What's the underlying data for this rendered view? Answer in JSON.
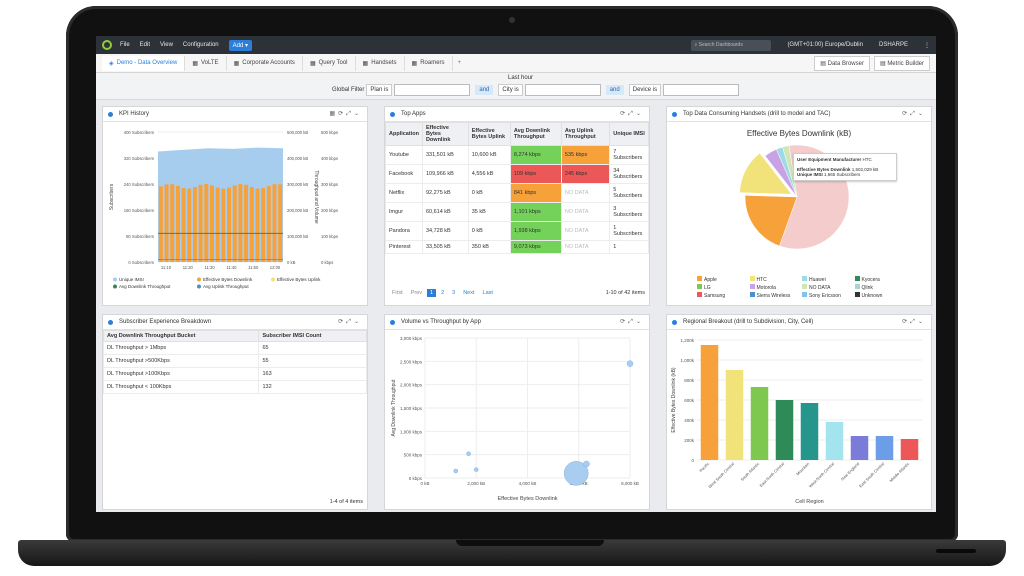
{
  "menubar": {
    "items": [
      "File",
      "Edit",
      "View",
      "Configuration"
    ],
    "add": "Add",
    "search_placeholder": "Search Dashboards",
    "timezone": "(GMT+01:00) Europe/Dublin",
    "user": "DSHARPE"
  },
  "tabs": [
    {
      "label": "Demo - Data Overview",
      "active": true
    },
    {
      "label": "VoLTE"
    },
    {
      "label": "Corporate Accounts"
    },
    {
      "label": "Query Tool"
    },
    {
      "label": "Handsets"
    },
    {
      "label": "Roamers"
    }
  ],
  "tab_add": "+",
  "toolbar": {
    "data_browser": "Data Browser",
    "metric_builder": "Metric Builder"
  },
  "filter": {
    "time": "Last hour",
    "global_label": "Global Filter",
    "plan": "Plan is",
    "and1": "and",
    "city": "City is",
    "and2": "and",
    "device": "Device is"
  },
  "kpi": {
    "title": "KPI History",
    "left_axis": "Subscribers",
    "right_axis": "Throughput and Volume",
    "y_left": [
      "400 Subscribers",
      "320 Subscribers",
      "240 Subscribers",
      "160 Subscribers",
      "80 Subscribers",
      "0 Subscribers"
    ],
    "y_right": [
      "500,000 kB",
      "400,000 kB",
      "300,000 kB",
      "200,000 kB",
      "100,000 kB",
      "0 kB"
    ],
    "y_right2": [
      "500 kbps",
      "400 kbps",
      "300 kbps",
      "200 kbps",
      "100 kbps",
      "0 kbps"
    ],
    "x": [
      "11:10",
      "11:20",
      "11:30",
      "11:40",
      "11:50",
      "12:00"
    ],
    "legend": [
      "Unique IMSI",
      "Effective Bytes Downlink",
      "Effective Bytes Uplink",
      "Avg Downlink Throughput",
      "Avg Uplink Throughput"
    ]
  },
  "sub_exp": {
    "title": "Subscriber Experience Breakdown",
    "headers": [
      "Avg Downlink Throughput Bucket",
      "Subscriber IMSI Count"
    ],
    "rows": [
      [
        "DL Throughput > 1Mbps",
        "65"
      ],
      [
        "DL Throughput >500Kbps",
        "55"
      ],
      [
        "DL Throughput >100Kbps",
        "163"
      ],
      [
        "DL Throughput < 100Kbps",
        "132"
      ]
    ],
    "footer": "1-4 of 4 items"
  },
  "apps": {
    "title": "Top Apps",
    "headers": [
      "Application",
      "Effective Bytes Downlink",
      "Effective Bytes Uplink",
      "Avg Downlink Throughput",
      "Avg Uplink Throughput",
      "Unique IMSI"
    ],
    "rows": [
      [
        "Youtube",
        "331,501 kB",
        "10,600 kB",
        "8,274 kbps",
        "535 kbps",
        "7 Subscribers"
      ],
      [
        "Facebook",
        "109,966 kB",
        "4,556 kB",
        "109 kbps",
        "245 kbps",
        "34 Subscribers"
      ],
      [
        "Netflix",
        "92,275 kB",
        "0 kB",
        "841 kbps",
        "NO DATA",
        "5 Subscribers"
      ],
      [
        "Imgur",
        "60,614 kB",
        "35 kB",
        "1,101 kbps",
        "NO DATA",
        "3 Subscribers"
      ],
      [
        "Pandora",
        "34,728 kB",
        "0 kB",
        "1,938 kbps",
        "NO DATA",
        "1 Subscribers"
      ],
      [
        "Pinterest",
        "33,505 kB",
        "350 kB",
        "9,073 kbps",
        "NO DATA",
        "1"
      ]
    ],
    "cell_colors": [
      [
        "g",
        "o"
      ],
      [
        "r",
        "r"
      ],
      [
        "o",
        ""
      ],
      [
        "g",
        ""
      ],
      [
        "g",
        ""
      ],
      [
        "g",
        ""
      ]
    ],
    "pager": {
      "first": "First",
      "prev": "Prev",
      "pages": [
        "1",
        "2",
        "3"
      ],
      "next": "Next",
      "last": "Last",
      "summary": "1-10 of 42 items"
    }
  },
  "handsets": {
    "title": "Top Data Consuming Handsets (drill to model and TAC)",
    "chart_title": "Effective Bytes Downlink (kB)",
    "tooltip": {
      "l1": "User Equipment Manufacturer",
      "v1": "HTC",
      "l2": "Effective Bytes Downlink",
      "v2": "1,502,029 kB",
      "l3": "Unique IMSI",
      "v3": "1,665 Subscribers"
    },
    "legend": [
      "Apple",
      "HTC",
      "Huawei",
      "Kyocera",
      "LG",
      "Motorola",
      "NO DATA",
      "Qlink",
      "Samsung",
      "Sierra Wireless",
      "Sony Ericsson",
      "Unknown"
    ],
    "legend_colors": [
      "#f7a13a",
      "#f2e27a",
      "#9fd9e6",
      "#2e8b57",
      "#7ec850",
      "#c9a2e6",
      "#cfe6b7",
      "#a4d6d6",
      "#ec5757",
      "#4a8fd0",
      "#85c1e9",
      "#333333"
    ]
  },
  "volume": {
    "title": "Volume vs Throughput by App",
    "xlabel": "Effective Bytes Downlink",
    "ylabel": "Avg Downlink Throughput",
    "yticks": [
      "3,000 kbps",
      "2,500 kbps",
      "2,000 kbps",
      "1,500 kbps",
      "1,000 kbps",
      "500 kbps",
      "0 kbps"
    ],
    "xticks": [
      "0 kB",
      "2,000 kB",
      "4,000 kB",
      "6,000 kB",
      "8,000 kB"
    ]
  },
  "regional": {
    "title": "Regional Breakout (drill to Subdivision, City, Cell)",
    "ylabel": "Effective Bytes Downlink (kB)",
    "xlabel": "Cell Region",
    "yticks": [
      "1,200k",
      "1,000k",
      "800k",
      "600k",
      "400k",
      "200k",
      "0"
    ]
  },
  "chart_data": [
    {
      "type": "bar",
      "title": "Effective Bytes Downlink (kB)",
      "categories": [
        "Pacific",
        "West South Central",
        "South Atlantic",
        "East North Central",
        "Mountain",
        "West North Central",
        "New England",
        "East South Central",
        "Middle Atlantic"
      ],
      "values": [
        1150000,
        900000,
        730000,
        600000,
        570000,
        380000,
        240000,
        240000,
        210000
      ],
      "colors": [
        "#f7a13a",
        "#f2e27a",
        "#7ec850",
        "#2e8b57",
        "#26968c",
        "#a4e4ee",
        "#7b7bd8",
        "#6b9ee6",
        "#ec5757"
      ],
      "ylim": [
        0,
        1200000
      ]
    },
    {
      "type": "scatter",
      "xlabel": "Effective Bytes Downlink",
      "ylabel": "Avg Downlink Throughput",
      "xlim": [
        0,
        8000
      ],
      "ylim": [
        0,
        3000
      ],
      "points": [
        {
          "x": 1200,
          "y": 150,
          "r": 2
        },
        {
          "x": 1700,
          "y": 520,
          "r": 2
        },
        {
          "x": 2000,
          "y": 180,
          "r": 2
        },
        {
          "x": 5900,
          "y": 100,
          "r": 12
        },
        {
          "x": 6300,
          "y": 300,
          "r": 3
        },
        {
          "x": 8000,
          "y": 2450,
          "r": 3
        }
      ]
    },
    {
      "type": "pie",
      "title": "Effective Bytes Downlink (kB)",
      "categories": [
        "Samsung",
        "Apple",
        "HTC",
        "Motorola",
        "Huawei",
        "Others"
      ],
      "values": [
        58,
        20,
        14,
        4,
        2,
        2
      ],
      "colors": [
        "#f4cccc",
        "#f7a13a",
        "#f2e27a",
        "#c9a2e6",
        "#9fd9e6",
        "#cfe6b7"
      ]
    },
    {
      "type": "bar",
      "title": "KPI History",
      "x": [
        "11:10",
        "11:20",
        "11:30",
        "11:40",
        "11:50",
        "12:00"
      ],
      "series": [
        {
          "name": "Unique IMSI",
          "values": [
            340,
            345,
            350,
            348,
            352,
            350
          ]
        },
        {
          "name": "Effective Bytes Downlink",
          "values": [
            300000,
            300000,
            300000,
            300000,
            300000,
            300000
          ]
        }
      ]
    }
  ]
}
